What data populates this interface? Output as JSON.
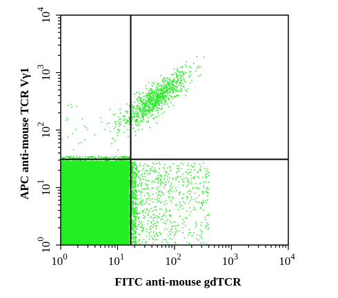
{
  "chart_data": {
    "type": "scatter",
    "xscale": "log",
    "yscale": "log",
    "xlim": [
      1,
      10000
    ],
    "ylim": [
      1,
      10000
    ],
    "xlabel": "FITC anti-mouse gdTCR",
    "ylabel": "APC anti-mouse TCR Vγ1",
    "x_ticks": [
      {
        "value": 1,
        "base": "10",
        "exp": "0"
      },
      {
        "value": 10,
        "base": "10",
        "exp": "1"
      },
      {
        "value": 100,
        "base": "10",
        "exp": "2"
      },
      {
        "value": 1000,
        "base": "10",
        "exp": "3"
      },
      {
        "value": 10000,
        "base": "10",
        "exp": "4"
      }
    ],
    "y_ticks": [
      {
        "value": 1,
        "base": "10",
        "exp": "0"
      },
      {
        "value": 10,
        "base": "10",
        "exp": "1"
      },
      {
        "value": 100,
        "base": "10",
        "exp": "2"
      },
      {
        "value": 1000,
        "base": "10",
        "exp": "3"
      },
      {
        "value": 10000,
        "base": "10",
        "exp": "4"
      }
    ],
    "quadrant_gates": {
      "x": 17,
      "y": 31
    },
    "dot_color": "#22ee22",
    "populations": [
      {
        "name": "",
        "x_range": [
          1,
          16
        ],
        "y_range": [
          1,
          29
        ],
        "dense": true
      },
      {
        "name": "",
        "center": [
          45,
          350
        ],
        "spread_log": [
          0.28,
          0.28
        ],
        "count": 900
      },
      {
        "name": "",
        "x_range": [
          17,
          400
        ],
        "y_range": [
          1,
          28
        ],
        "count": 700
      },
      {
        "name": "",
        "x_range": [
          1,
          17
        ],
        "y_range": [
          31,
          300
        ],
        "count": 35
      }
    ],
    "grid": false,
    "legend": "none"
  }
}
